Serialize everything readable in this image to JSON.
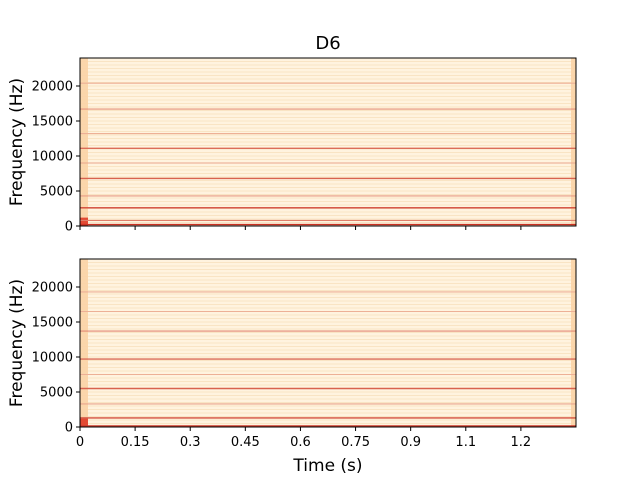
{
  "chart_data": {
    "type": "heatmap",
    "title": "D6",
    "xlabel": "Time (s)",
    "xlim": [
      0,
      1.35
    ],
    "x_ticks": [
      0,
      0.15,
      0.3,
      0.45,
      0.6,
      0.75,
      0.9,
      1.05,
      1.2
    ],
    "x_tick_labels": [
      "0",
      "0.15",
      "0.3",
      "0.45",
      "0.6",
      "0.75",
      "0.9",
      "1.1",
      "1.2"
    ],
    "colormap": "OrRd",
    "panels": [
      {
        "ylabel": "Frequency (Hz)",
        "ylim": [
          0,
          24000
        ],
        "y_ticks": [
          0,
          5000,
          10000,
          15000,
          20000
        ],
        "y_tick_labels": [
          "0",
          "5000",
          "10000",
          "15000",
          "20000"
        ],
        "show_x_tick_labels": false,
        "bands": [
          {
            "freq": 200,
            "intensity": 0.95
          },
          {
            "freq": 800,
            "intensity": 0.55
          },
          {
            "freq": 2600,
            "intensity": 0.85
          },
          {
            "freq": 4300,
            "intensity": 0.4
          },
          {
            "freq": 6800,
            "intensity": 0.7
          },
          {
            "freq": 9000,
            "intensity": 0.35
          },
          {
            "freq": 11100,
            "intensity": 0.65
          },
          {
            "freq": 13200,
            "intensity": 0.3
          },
          {
            "freq": 16700,
            "intensity": 0.45
          },
          {
            "freq": 20400,
            "intensity": 0.3
          }
        ]
      },
      {
        "ylabel": "Frequency (Hz)",
        "ylim": [
          0,
          24000
        ],
        "y_ticks": [
          0,
          5000,
          10000,
          15000,
          20000
        ],
        "y_tick_labels": [
          "0",
          "5000",
          "10000",
          "15000",
          "20000"
        ],
        "show_x_tick_labels": true,
        "bands": [
          {
            "freq": 150,
            "intensity": 0.9
          },
          {
            "freq": 1300,
            "intensity": 0.8
          },
          {
            "freq": 3300,
            "intensity": 0.35
          },
          {
            "freq": 5500,
            "intensity": 0.7
          },
          {
            "freq": 7500,
            "intensity": 0.3
          },
          {
            "freq": 9700,
            "intensity": 0.65
          },
          {
            "freq": 13700,
            "intensity": 0.5
          },
          {
            "freq": 16500,
            "intensity": 0.3
          },
          {
            "freq": 19300,
            "intensity": 0.3
          }
        ]
      }
    ]
  }
}
